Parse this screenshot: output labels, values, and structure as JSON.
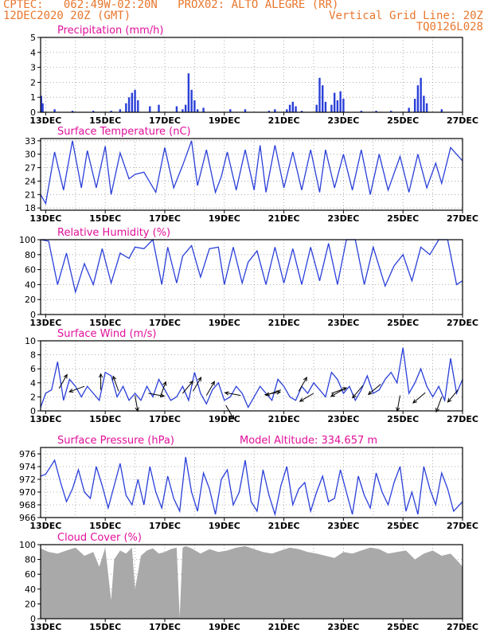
{
  "header": {
    "line1_left": "CPTEC:   062:49W-02:20N   PROX02: ALTO ALEGRE (RR)",
    "line2_left": "12DEC2020 20Z (GMT)",
    "line2_right": "Vertical Grid Line: 20Z",
    "line3_right": "TQ0126L028"
  },
  "colors": {
    "header": "#e8772e",
    "title": "#e0109a",
    "series": "#2a3fd8",
    "cloud": "#a9a9a9",
    "grid": "#9a9a9a"
  },
  "x_axis": {
    "labels": [
      "13DEC",
      "15DEC",
      "17DEC",
      "19DEC",
      "21DEC",
      "23DEC",
      "25DEC",
      "27DEC"
    ],
    "start_day": 12.83,
    "end_day": 27.0
  },
  "chart_data": [
    {
      "type": "bar",
      "title": "Precipitation (mm/h)",
      "ylim": [
        0,
        5
      ],
      "yticks": [
        "0",
        "1",
        "2",
        "3",
        "4",
        "5"
      ],
      "x": [
        12.85,
        12.9,
        13.3,
        13.9,
        14.6,
        15.2,
        15.5,
        15.7,
        15.8,
        15.9,
        16.0,
        16.1,
        16.5,
        16.8,
        17.4,
        17.6,
        17.7,
        17.8,
        17.9,
        18.0,
        18.1,
        18.3,
        19.2,
        19.7,
        20.5,
        20.7,
        21.1,
        21.2,
        21.3,
        21.4,
        21.6,
        22.1,
        22.2,
        22.3,
        22.4,
        22.6,
        22.7,
        22.8,
        22.9,
        23.0,
        23.6,
        24.1,
        24.6,
        25.2,
        25.4,
        25.5,
        25.6,
        25.7,
        25.8,
        26.3
      ],
      "values": [
        1.1,
        0.6,
        0.2,
        0.1,
        0.1,
        0.1,
        0.2,
        0.6,
        1.0,
        1.3,
        1.5,
        0.8,
        0.4,
        0.5,
        0.4,
        0.2,
        0.5,
        2.6,
        1.5,
        0.8,
        0.2,
        0.3,
        0.2,
        0.2,
        0.1,
        0.2,
        0.2,
        0.5,
        0.7,
        0.4,
        0.1,
        0.5,
        2.3,
        1.8,
        0.7,
        0.5,
        1.3,
        0.8,
        1.4,
        0.9,
        0.1,
        0.1,
        0.1,
        0.3,
        0.9,
        1.8,
        2.3,
        1.1,
        0.6,
        0.2
      ]
    },
    {
      "type": "line",
      "title": "Surface Temperature (nC)",
      "ylim": [
        17.5,
        33.5
      ],
      "yticks": [
        "18",
        "21",
        "24",
        "27",
        "30",
        "33"
      ],
      "x": [
        12.83,
        13.0,
        13.3,
        13.6,
        13.9,
        14.2,
        14.4,
        14.7,
        15.0,
        15.2,
        15.5,
        15.8,
        16.0,
        16.3,
        16.7,
        17.0,
        17.3,
        17.6,
        17.9,
        18.1,
        18.4,
        18.7,
        18.9,
        19.1,
        19.4,
        19.7,
        20.0,
        20.2,
        20.4,
        20.7,
        21.0,
        21.3,
        21.6,
        21.9,
        22.2,
        22.4,
        22.7,
        23.0,
        23.3,
        23.6,
        23.9,
        24.2,
        24.5,
        24.9,
        25.2,
        25.5,
        25.8,
        26.1,
        26.3,
        26.6,
        27.0
      ],
      "values": [
        21.0,
        19.0,
        30.5,
        22.0,
        33.0,
        22.5,
        30.8,
        22.5,
        31.8,
        21.0,
        30.3,
        24.5,
        25.5,
        26.0,
        21.5,
        31.5,
        22.5,
        27.5,
        33.0,
        23.0,
        31.0,
        21.5,
        25.0,
        30.5,
        22.0,
        31.0,
        22.0,
        32.0,
        21.5,
        32.0,
        22.5,
        30.5,
        22.0,
        31.0,
        21.5,
        31.0,
        22.5,
        30.0,
        22.0,
        31.0,
        21.0,
        30.0,
        22.0,
        29.5,
        21.5,
        30.0,
        22.5,
        28.0,
        23.5,
        31.5,
        28.5
      ]
    },
    {
      "type": "line",
      "title": "Relative Humidity (%)",
      "ylim": [
        0,
        100
      ],
      "yticks": [
        "0",
        "20",
        "40",
        "60",
        "80",
        "100"
      ],
      "x": [
        12.83,
        13.1,
        13.4,
        13.7,
        14.0,
        14.3,
        14.6,
        14.9,
        15.2,
        15.5,
        15.8,
        16.0,
        16.3,
        16.6,
        16.9,
        17.1,
        17.4,
        17.6,
        17.9,
        18.2,
        18.5,
        18.8,
        19.0,
        19.3,
        19.6,
        19.8,
        20.1,
        20.4,
        20.7,
        21.0,
        21.3,
        21.6,
        21.9,
        22.2,
        22.5,
        22.8,
        23.1,
        23.4,
        23.7,
        24.0,
        24.4,
        24.7,
        25.0,
        25.3,
        25.6,
        25.9,
        26.2,
        26.5,
        26.8,
        27.0
      ],
      "values": [
        100,
        98,
        40,
        82,
        30,
        68,
        40,
        88,
        42,
        82,
        75,
        90,
        88,
        100,
        40,
        90,
        42,
        78,
        92,
        50,
        88,
        90,
        40,
        90,
        42,
        70,
        85,
        40,
        90,
        42,
        88,
        40,
        90,
        45,
        95,
        40,
        100,
        100,
        40,
        90,
        38,
        65,
        80,
        45,
        90,
        80,
        100,
        100,
        40,
        45
      ]
    },
    {
      "type": "line",
      "title": "Surface Wind (m/s)",
      "ylim": [
        0,
        10
      ],
      "yticks": [
        "0",
        "2",
        "4",
        "6",
        "8",
        "10"
      ],
      "x": [
        12.83,
        13.0,
        13.2,
        13.4,
        13.6,
        13.8,
        14.0,
        14.2,
        14.4,
        14.6,
        14.8,
        15.0,
        15.2,
        15.4,
        15.6,
        15.8,
        16.0,
        16.2,
        16.4,
        16.6,
        16.8,
        17.0,
        17.2,
        17.4,
        17.6,
        17.8,
        18.0,
        18.2,
        18.4,
        18.6,
        18.8,
        19.0,
        19.2,
        19.4,
        19.6,
        19.8,
        20.0,
        20.2,
        20.4,
        20.6,
        20.8,
        21.0,
        21.2,
        21.4,
        21.6,
        21.8,
        22.0,
        22.2,
        22.4,
        22.6,
        22.8,
        23.0,
        23.2,
        23.4,
        23.6,
        23.8,
        24.0,
        24.2,
        24.4,
        24.6,
        24.8,
        25.0,
        25.2,
        25.4,
        25.6,
        25.8,
        26.0,
        26.2,
        26.4,
        26.6,
        26.8,
        27.0
      ],
      "values": [
        0.5,
        2.5,
        3.0,
        7.0,
        1.5,
        4.5,
        3.5,
        2.0,
        3.5,
        2.5,
        1.5,
        5.5,
        5.0,
        2.0,
        3.5,
        1.5,
        2.5,
        1.5,
        3.5,
        2.0,
        4.5,
        3.0,
        1.5,
        2.0,
        3.5,
        1.5,
        5.5,
        2.5,
        1.0,
        3.0,
        4.0,
        1.5,
        2.0,
        3.5,
        2.5,
        0.5,
        2.0,
        3.5,
        2.5,
        1.5,
        4.5,
        3.5,
        2.0,
        1.5,
        3.5,
        2.5,
        4.0,
        3.0,
        2.0,
        5.5,
        4.5,
        2.5,
        3.5,
        1.5,
        3.0,
        5.0,
        2.5,
        3.0,
        4.5,
        5.5,
        4.0,
        9.0,
        2.5,
        4.0,
        6.0,
        3.5,
        2.0,
        3.5,
        1.5,
        7.5,
        2.5,
        4.5
      ],
      "arrows": [
        {
          "day": 13.45,
          "speed": 3.2,
          "dir": 30
        },
        {
          "day": 14.3,
          "speed": 3.5,
          "dir": 250
        },
        {
          "day": 14.85,
          "speed": 3.0,
          "dir": 0
        },
        {
          "day": 15.45,
          "speed": 2.8,
          "dir": 340
        },
        {
          "day": 16.0,
          "speed": 2.2,
          "dir": 170
        },
        {
          "day": 16.45,
          "speed": 2.5,
          "dir": 100
        },
        {
          "day": 16.85,
          "speed": 2.0,
          "dir": 20
        },
        {
          "day": 17.6,
          "speed": 2.5,
          "dir": 40
        },
        {
          "day": 17.95,
          "speed": 2.8,
          "dir": 30
        },
        {
          "day": 18.4,
          "speed": 2.2,
          "dir": 30
        },
        {
          "day": 19.05,
          "speed": 0.8,
          "dir": 150
        },
        {
          "day": 19.55,
          "speed": 2.2,
          "dir": 280
        },
        {
          "day": 20.35,
          "speed": 2.3,
          "dir": 80
        },
        {
          "day": 20.9,
          "speed": 3.0,
          "dir": 250
        },
        {
          "day": 21.5,
          "speed": 2.8,
          "dir": 30
        },
        {
          "day": 22.0,
          "speed": 2.5,
          "dir": 240
        },
        {
          "day": 22.6,
          "speed": 2.5,
          "dir": 70
        },
        {
          "day": 23.05,
          "speed": 3.2,
          "dir": 240
        },
        {
          "day": 23.65,
          "speed": 3.6,
          "dir": 220
        },
        {
          "day": 24.25,
          "speed": 3.8,
          "dir": 230
        },
        {
          "day": 24.9,
          "speed": 2.2,
          "dir": 190
        },
        {
          "day": 25.75,
          "speed": 2.6,
          "dir": 230
        },
        {
          "day": 26.3,
          "speed": 2.0,
          "dir": 200
        },
        {
          "day": 26.85,
          "speed": 3.0,
          "dir": 220
        }
      ]
    },
    {
      "type": "line",
      "title": "Surface Pressure (hPa)",
      "subtitle": "Model Altitude: 334.657 m",
      "ylim": [
        966,
        977
      ],
      "yticks": [
        "966",
        "968",
        "970",
        "972",
        "974",
        "976"
      ],
      "x": [
        12.83,
        13.0,
        13.3,
        13.5,
        13.7,
        13.9,
        14.1,
        14.3,
        14.5,
        14.7,
        14.9,
        15.1,
        15.3,
        15.5,
        15.7,
        15.9,
        16.1,
        16.3,
        16.5,
        16.7,
        16.9,
        17.1,
        17.3,
        17.5,
        17.7,
        17.9,
        18.1,
        18.3,
        18.5,
        18.7,
        18.9,
        19.1,
        19.3,
        19.5,
        19.7,
        19.9,
        20.1,
        20.3,
        20.5,
        20.7,
        20.9,
        21.1,
        21.3,
        21.5,
        21.7,
        21.9,
        22.1,
        22.3,
        22.5,
        22.7,
        22.9,
        23.1,
        23.3,
        23.5,
        23.7,
        23.9,
        24.1,
        24.3,
        24.5,
        24.7,
        24.9,
        25.1,
        25.3,
        25.5,
        25.7,
        25.9,
        26.1,
        26.3,
        26.5,
        26.7,
        27.0
      ],
      "values": [
        972.5,
        972.8,
        975.0,
        971.5,
        968.5,
        970.5,
        973.5,
        970.0,
        969.0,
        974.0,
        971.0,
        967.5,
        971.0,
        974.5,
        969.5,
        968.0,
        972.0,
        968.0,
        974.0,
        970.0,
        967.5,
        972.5,
        969.0,
        967.0,
        975.5,
        970.0,
        967.0,
        973.0,
        970.5,
        966.5,
        972.0,
        973.5,
        968.0,
        970.0,
        975.0,
        968.5,
        967.0,
        973.5,
        969.5,
        966.5,
        971.0,
        974.0,
        968.0,
        970.5,
        971.5,
        967.0,
        970.0,
        972.5,
        968.5,
        969.0,
        973.5,
        970.0,
        966.5,
        972.5,
        969.5,
        967.5,
        973.0,
        970.0,
        968.0,
        971.5,
        974.0,
        967.0,
        970.0,
        966.5,
        974.0,
        970.5,
        968.0,
        973.0,
        970.5,
        967.0,
        968.5
      ]
    },
    {
      "type": "area",
      "title": "Cloud Cover (%)",
      "ylim": [
        0,
        100
      ],
      "yticks": [
        "0",
        "20",
        "40",
        "60",
        "80",
        "100"
      ],
      "x": [
        12.83,
        13.1,
        13.4,
        13.7,
        14.0,
        14.3,
        14.6,
        14.8,
        15.0,
        15.1,
        15.2,
        15.3,
        15.5,
        15.7,
        15.9,
        16.0,
        16.2,
        16.4,
        16.6,
        16.8,
        17.0,
        17.2,
        17.4,
        17.5,
        17.6,
        17.7,
        17.9,
        18.2,
        18.5,
        18.8,
        19.1,
        19.4,
        19.7,
        20.0,
        20.3,
        20.6,
        20.9,
        21.2,
        21.5,
        21.8,
        22.1,
        22.4,
        22.7,
        23.0,
        23.3,
        23.6,
        23.9,
        24.2,
        24.5,
        24.8,
        25.1,
        25.4,
        25.7,
        26.0,
        26.3,
        26.6,
        26.9,
        27.0
      ],
      "values": [
        95,
        90,
        88,
        92,
        96,
        85,
        90,
        70,
        96,
        60,
        25,
        80,
        92,
        88,
        96,
        40,
        85,
        92,
        95,
        88,
        90,
        94,
        96,
        2,
        96,
        98,
        95,
        88,
        94,
        90,
        92,
        96,
        98,
        94,
        90,
        88,
        92,
        96,
        94,
        90,
        88,
        85,
        82,
        90,
        88,
        92,
        96,
        94,
        88,
        90,
        92,
        80,
        88,
        92,
        85,
        88,
        75,
        70
      ]
    }
  ]
}
